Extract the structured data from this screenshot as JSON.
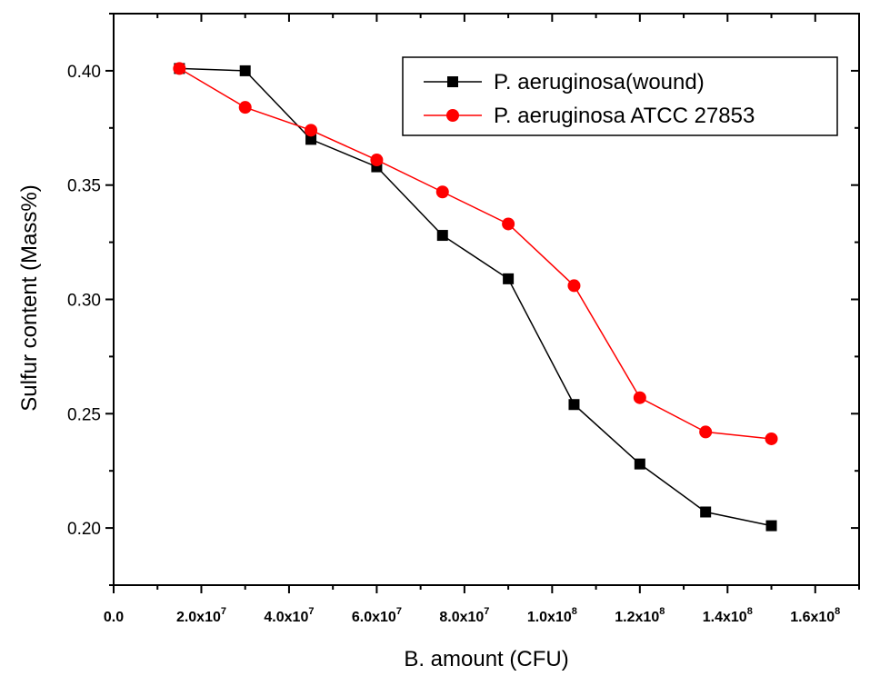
{
  "chart_data": {
    "type": "line",
    "xlabel": "B. amount (CFU)",
    "ylabel": "Sulfur content (Mass%)",
    "xlim": [
      0,
      170000000
    ],
    "ylim": [
      0.175,
      0.425
    ],
    "x_ticks": [
      {
        "value": 0,
        "mantissa": "0.0",
        "exponent": ""
      },
      {
        "value": 20000000,
        "mantissa": "2.0x10",
        "exponent": "7"
      },
      {
        "value": 40000000,
        "mantissa": "4.0x10",
        "exponent": "7"
      },
      {
        "value": 60000000,
        "mantissa": "6.0x10",
        "exponent": "7"
      },
      {
        "value": 80000000,
        "mantissa": "8.0x10",
        "exponent": "7"
      },
      {
        "value": 100000000,
        "mantissa": "1.0x10",
        "exponent": "8"
      },
      {
        "value": 120000000,
        "mantissa": "1.2x10",
        "exponent": "8"
      },
      {
        "value": 140000000,
        "mantissa": "1.4x10",
        "exponent": "8"
      },
      {
        "value": 160000000,
        "mantissa": "1.6x10",
        "exponent": "8"
      }
    ],
    "y_ticks": [
      {
        "value": 0.2,
        "label": "0.20"
      },
      {
        "value": 0.25,
        "label": "0.25"
      },
      {
        "value": 0.3,
        "label": "0.30"
      },
      {
        "value": 0.35,
        "label": "0.35"
      },
      {
        "value": 0.4,
        "label": "0.40"
      }
    ],
    "x": [
      15000000,
      30000000,
      45000000,
      60000000,
      75000000,
      90000000,
      105000000,
      120000000,
      135000000,
      150000000
    ],
    "series": [
      {
        "name": "P. aeruginosa(wound)",
        "color": "#000000",
        "marker": "square",
        "values": [
          0.401,
          0.4,
          0.37,
          0.358,
          0.328,
          0.309,
          0.254,
          0.228,
          0.207,
          0.201
        ]
      },
      {
        "name": "P. aeruginosa ATCC 27853",
        "color": "#ff0000",
        "marker": "circle",
        "values": [
          0.401,
          0.384,
          0.374,
          0.361,
          0.347,
          0.333,
          0.306,
          0.257,
          0.242,
          0.239
        ]
      }
    ],
    "legend": {
      "placement": "top-right"
    },
    "grid": false
  }
}
